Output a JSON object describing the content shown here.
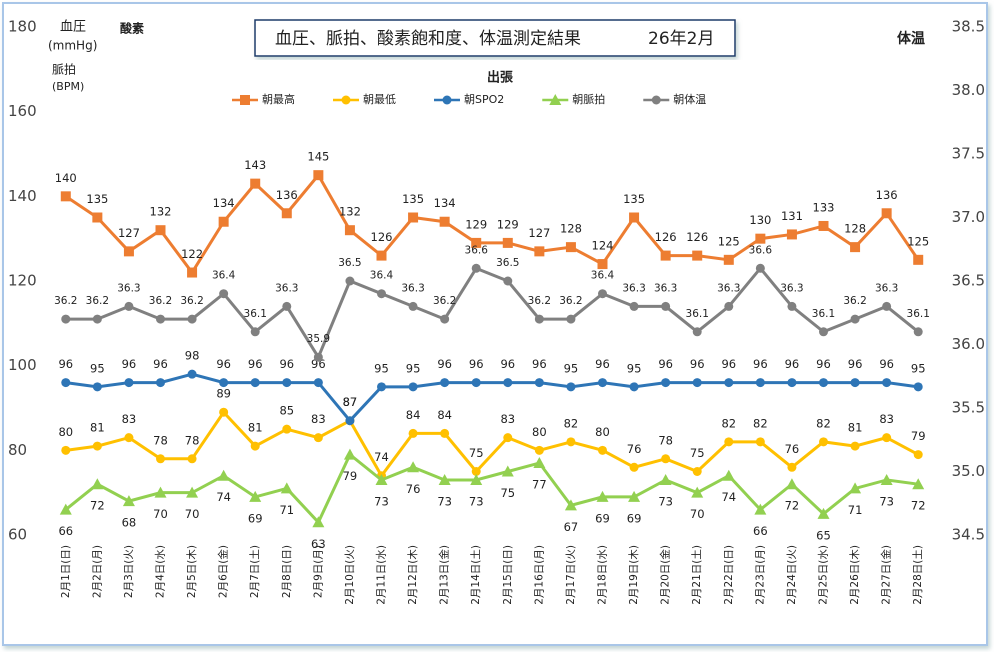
{
  "chart_data": {
    "type": "line",
    "title": "血圧、脈拍、酸素飽和度、体温測定結果",
    "subtitle": "26年2月",
    "annotation": "出張",
    "y_label_lines": [
      "血圧",
      "(mmHg)"
    ],
    "y_label_oxygen": "酸素",
    "y_label_pulse_lines": [
      "脈拍",
      "(BPM)"
    ],
    "y2_label": "体温",
    "categories": [
      "2月1日(日)",
      "2月2日(月)",
      "2月3日(火)",
      "2月4日(水)",
      "2月5日(木)",
      "2月6日(金)",
      "2月7日(土)",
      "2月8日(日)",
      "2月9日(月)",
      "2月10日(火)",
      "2月11日(水)",
      "2月12日(木)",
      "2月13日(金)",
      "2月14日(土)",
      "2月15日(日)",
      "2月16日(月)",
      "2月17日(火)",
      "2月18日(水)",
      "2月19日(木)",
      "2月20日(金)",
      "2月21日(土)",
      "2月22日(日)",
      "2月23日(月)",
      "2月24日(火)",
      "2月25日(水)",
      "2月26日(木)",
      "2月27日(金)",
      "2月28日(土)"
    ],
    "ylim": [
      60,
      180
    ],
    "yticks": [
      60,
      80,
      100,
      120,
      140,
      160,
      180
    ],
    "y2lim": [
      34.5,
      38.5
    ],
    "y2ticks": [
      34.5,
      {
        "value": 35,
        "label": "35.0"
      },
      35.5,
      {
        "value": 36,
        "label": "36.0"
      },
      36.5,
      {
        "value": 37,
        "label": "37.0"
      },
      37.5,
      {
        "value": 38,
        "label": "38.0"
      },
      38.5
    ],
    "series": [
      {
        "name": "朝最高",
        "color": "#ed7d31",
        "marker": "square",
        "label_pos": "above",
        "values": [
          140,
          135,
          127,
          132,
          122,
          134,
          143,
          136,
          145,
          132,
          126,
          135,
          134,
          129,
          129,
          127,
          128,
          124,
          135,
          126,
          126,
          125,
          130,
          131,
          133,
          128,
          136,
          125
        ]
      },
      {
        "name": "朝最低",
        "color": "#ffc000",
        "marker": "circle",
        "label_pos": "above",
        "values": [
          80,
          81,
          83,
          78,
          78,
          89,
          81,
          85,
          83,
          87,
          74,
          84,
          84,
          75,
          83,
          80,
          82,
          80,
          76,
          78,
          75,
          82,
          82,
          76,
          82,
          81,
          83,
          79
        ]
      },
      {
        "name": "朝SPO2",
        "color": "#2e75b6",
        "marker": "circle",
        "label_pos": "above",
        "values": [
          96,
          95,
          96,
          96,
          98,
          96,
          96,
          96,
          96,
          87,
          95,
          95,
          96,
          96,
          96,
          96,
          95,
          96,
          95,
          96,
          96,
          96,
          96,
          96,
          96,
          96,
          96,
          95
        ]
      },
      {
        "name": "朝脈拍",
        "color": "#92d050",
        "marker": "triangle",
        "label_pos": "below",
        "values": [
          66,
          72,
          68,
          70,
          70,
          74,
          69,
          71,
          63,
          79,
          73,
          76,
          73,
          73,
          75,
          77,
          67,
          69,
          69,
          73,
          70,
          74,
          66,
          72,
          65,
          71,
          73,
          72
        ]
      },
      {
        "name": "朝体温",
        "color": "#808080",
        "marker": "circle",
        "label_pos": "above",
        "axis": "y2",
        "values": [
          36.2,
          36.2,
          36.3,
          36.2,
          36.2,
          36.4,
          36.1,
          36.3,
          35.9,
          36.5,
          36.4,
          36.3,
          36.2,
          36.6,
          36.5,
          36.2,
          36.2,
          36.4,
          36.3,
          36.3,
          36.1,
          36.3,
          36.6,
          36.3,
          36.1,
          36.2,
          36.3,
          36.1
        ]
      }
    ]
  }
}
